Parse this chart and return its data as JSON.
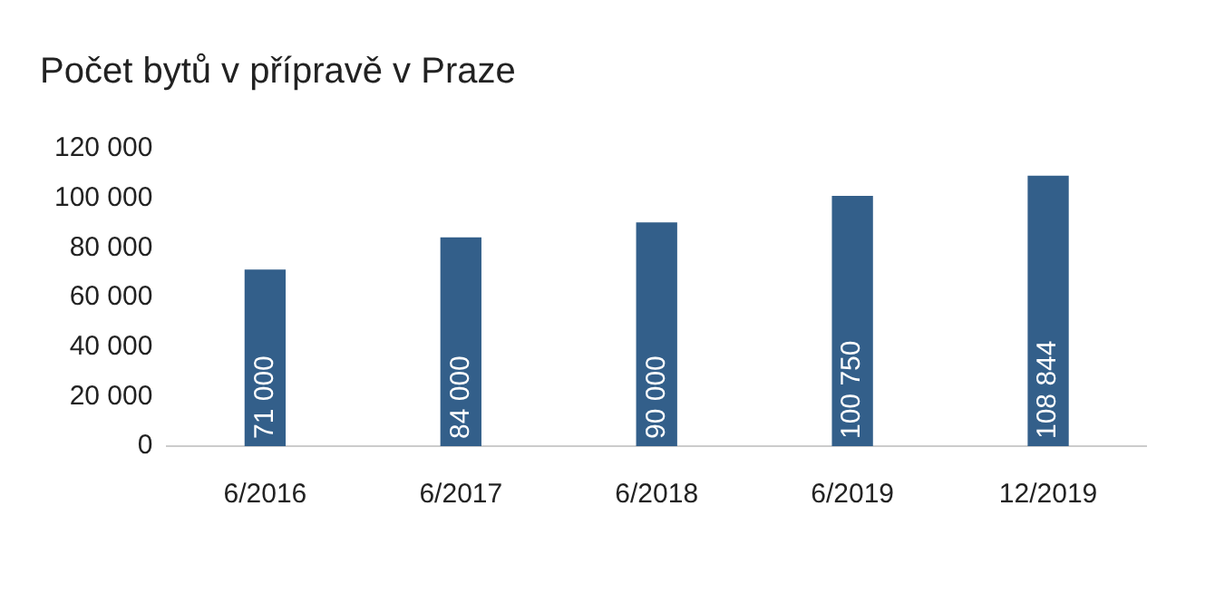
{
  "chart_data": {
    "type": "bar",
    "title": "Počet bytů v přípravě v Praze",
    "categories": [
      "6/2016",
      "6/2017",
      "6/2018",
      "6/2019",
      "12/2019"
    ],
    "values": [
      71000,
      84000,
      90000,
      100750,
      108844
    ],
    "value_labels": [
      "71 000",
      "84 000",
      "90 000",
      "100 750",
      "108 844"
    ],
    "color": "#335f8a",
    "ylim": [
      0,
      120000
    ],
    "yticks": [
      {
        "value": 0,
        "label": "0"
      },
      {
        "value": 20000,
        "label": "20 000"
      },
      {
        "value": 40000,
        "label": "40 000"
      },
      {
        "value": 60000,
        "label": "60 000"
      },
      {
        "value": 80000,
        "label": "80 000"
      },
      {
        "value": 100000,
        "label": "100 000"
      },
      {
        "value": 120000,
        "label": "120 000"
      }
    ],
    "grid": false
  }
}
